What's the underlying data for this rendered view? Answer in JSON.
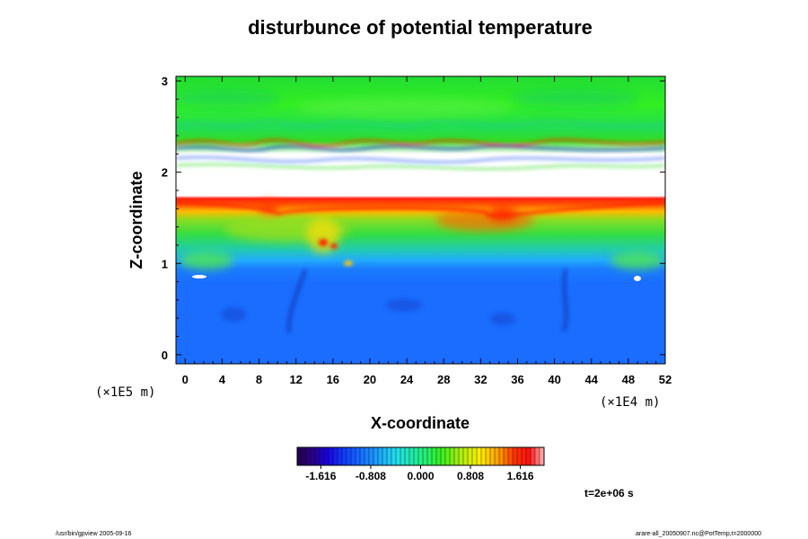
{
  "chart_data": {
    "type": "heatmap",
    "title": "disturbunce of potential temperature",
    "xlabel": "X-coordinate",
    "ylabel": "Z-coordinate",
    "x_unit": "(×1E4 m)",
    "y_unit": "(×1E5 m)",
    "xlim": [
      -1,
      52
    ],
    "ylim": [
      -0.1,
      3.05
    ],
    "x_ticks": [
      "0",
      "4",
      "8",
      "12",
      "16",
      "20",
      "24",
      "28",
      "32",
      "36",
      "40",
      "44",
      "48",
      "52"
    ],
    "y_ticks": [
      "0",
      "1",
      "2",
      "3"
    ],
    "colorbar": {
      "range": [
        -2.0,
        2.0
      ],
      "tick_labels": [
        "-1.616",
        "-0.808",
        "0.000",
        "0.808",
        "1.616"
      ],
      "tick_values": [
        -1.616,
        -0.808,
        0.0,
        0.808,
        1.616
      ]
    },
    "grid": false,
    "legend": "colorbar-bottom"
  },
  "time_label": "t=2e+06 s",
  "footer_left": "/usr/bin/gpview 2005-09-16",
  "footer_right": "arare-all_20050907.nc@PotTemp,t=2000000"
}
